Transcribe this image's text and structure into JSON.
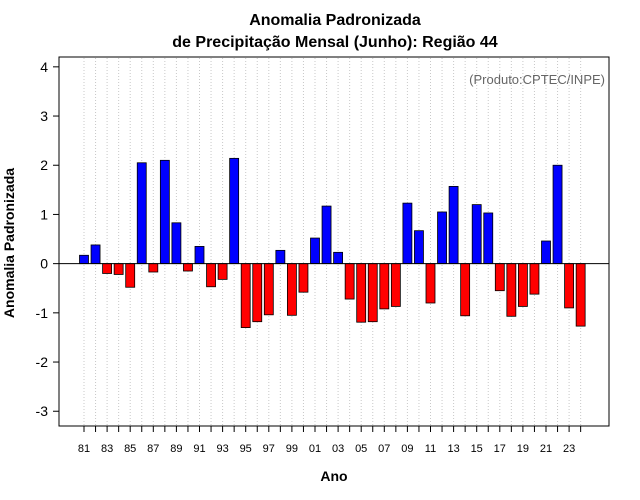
{
  "chart_data": {
    "type": "bar",
    "title_line1": "Anomalia Padronizada",
    "title_line2": "de Precipitação Mensal (Junho): Região 44",
    "xlabel": "Ano",
    "ylabel": "Anomalia Padronizada",
    "annotation": "(Produto:CPTEC/INPE)",
    "ylim": [
      -3.3,
      4.2
    ],
    "yticks": [
      -3,
      -2,
      -1,
      0,
      1,
      2,
      3,
      4
    ],
    "grid": "vertical-dotted",
    "positive_color": "#0000ff",
    "negative_color": "#ff0000",
    "categories": [
      "1981",
      "1982",
      "1983",
      "1984",
      "1985",
      "1986",
      "1987",
      "1988",
      "1989",
      "1990",
      "1991",
      "1992",
      "1993",
      "1994",
      "1995",
      "1996",
      "1997",
      "1998",
      "1999",
      "2000",
      "2001",
      "2002",
      "2003",
      "2004",
      "2005",
      "2006",
      "2007",
      "2008",
      "2009",
      "2010",
      "2011",
      "2012",
      "2013",
      "2014",
      "2015",
      "2016",
      "2017",
      "2018",
      "2019",
      "2020",
      "2021",
      "2022",
      "2023",
      "2024"
    ],
    "xtick_labels": [
      "81",
      "",
      "83",
      "",
      "85",
      "",
      "87",
      "",
      "89",
      "",
      "91",
      "",
      "93",
      "",
      "95",
      "",
      "97",
      "",
      "99",
      "",
      "01",
      "",
      "03",
      "",
      "05",
      "",
      "07",
      "",
      "09",
      "",
      "11",
      "",
      "13",
      "",
      "15",
      "",
      "17",
      "",
      "19",
      "",
      "21",
      "",
      "23",
      ""
    ],
    "values": [
      0.17,
      0.38,
      -0.2,
      -0.22,
      -0.48,
      2.05,
      -0.17,
      2.1,
      0.83,
      -0.15,
      0.35,
      -0.47,
      -0.32,
      2.14,
      -1.3,
      -1.18,
      -1.04,
      0.27,
      -1.05,
      -0.58,
      0.52,
      1.17,
      0.23,
      -0.72,
      -1.19,
      -1.18,
      -0.92,
      -0.87,
      1.23,
      0.67,
      -0.8,
      1.05,
      1.57,
      -1.06,
      1.2,
      1.03,
      -0.55,
      -1.07,
      -0.87,
      -0.62,
      0.46,
      2.0,
      -0.9,
      -1.27
    ]
  }
}
